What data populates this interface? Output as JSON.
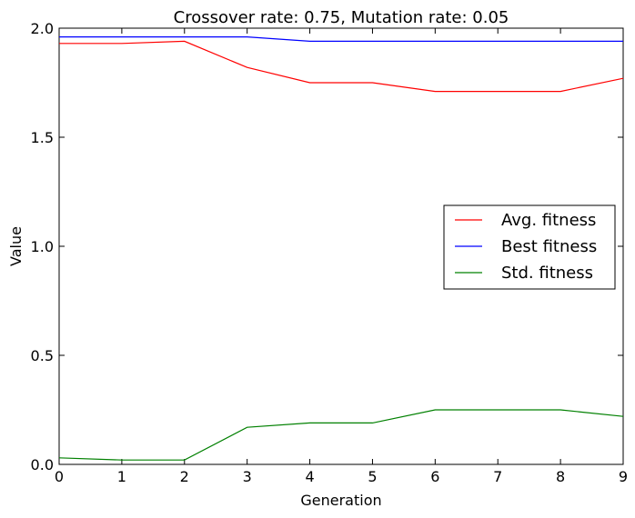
{
  "chart_data": {
    "type": "line",
    "title": "Crossover rate: 0.75, Mutation rate: 0.05",
    "xlabel": "Generation",
    "ylabel": "Value",
    "xlim": [
      0,
      9
    ],
    "ylim": [
      0,
      2.0
    ],
    "x_ticks": [
      "0",
      "1",
      "2",
      "3",
      "4",
      "5",
      "6",
      "7",
      "8",
      "9"
    ],
    "y_ticks": [
      "0.0",
      "0.5",
      "1.0",
      "1.5",
      "2.0"
    ],
    "grid": false,
    "legend_position": "center-right",
    "x": [
      0,
      1,
      2,
      3,
      4,
      5,
      6,
      7,
      8,
      9
    ],
    "series": [
      {
        "name": "Avg. fitness",
        "color": "#ff0000",
        "values": [
          1.93,
          1.93,
          1.94,
          1.82,
          1.75,
          1.75,
          1.71,
          1.71,
          1.71,
          1.77
        ]
      },
      {
        "name": "Best fitness",
        "color": "#0000ff",
        "values": [
          1.96,
          1.96,
          1.96,
          1.96,
          1.94,
          1.94,
          1.94,
          1.94,
          1.94,
          1.94
        ]
      },
      {
        "name": "Std. fitness",
        "color": "#008000",
        "values": [
          0.03,
          0.02,
          0.02,
          0.17,
          0.19,
          0.19,
          0.25,
          0.25,
          0.25,
          0.22
        ]
      }
    ]
  }
}
